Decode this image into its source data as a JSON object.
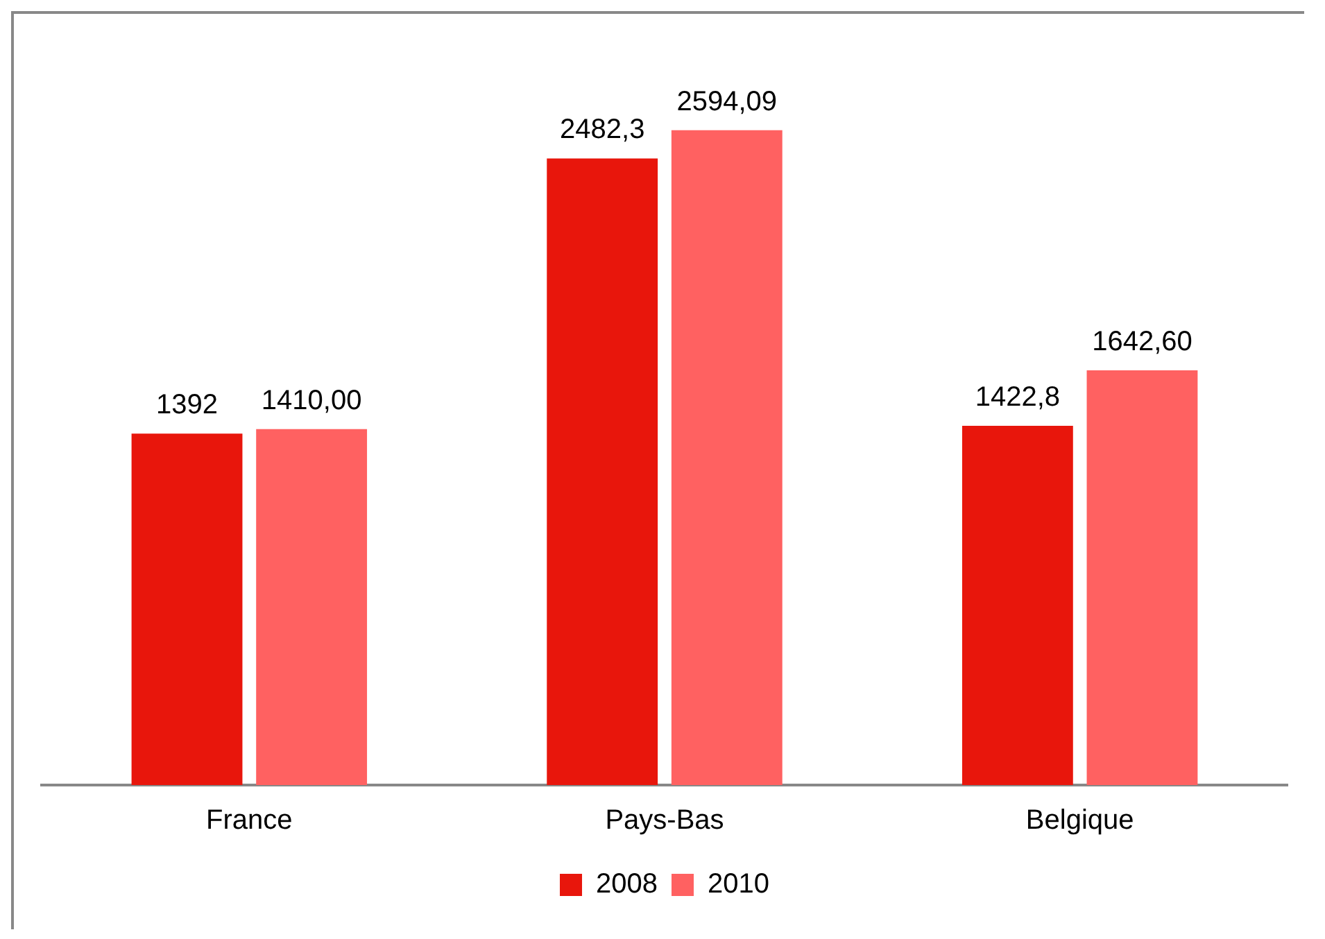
{
  "chart_data": {
    "type": "bar",
    "categories": [
      "France",
      "Pays-Bas",
      "Belgique"
    ],
    "series": [
      {
        "name": "2008",
        "color": "#e8160c",
        "values": [
          1392,
          2482.3,
          1422.8
        ],
        "value_labels": [
          "1392",
          "2482,3",
          "1422,8"
        ]
      },
      {
        "name": "2010",
        "color": "#ff6161",
        "values": [
          1410,
          2594.09,
          1642.6
        ],
        "value_labels": [
          "1410,00",
          "2594,09",
          "1642,60"
        ]
      }
    ],
    "tick_labels": "x",
    "grid": false,
    "legend": "bottom"
  }
}
